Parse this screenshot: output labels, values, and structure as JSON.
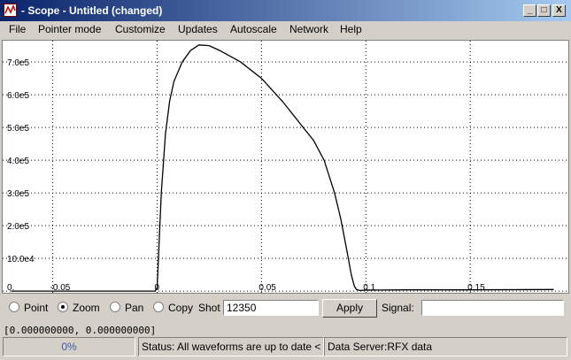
{
  "window": {
    "title": "- Scope - Untitled (changed)",
    "buttons": [
      "_",
      "□",
      "X"
    ]
  },
  "menu": [
    "File",
    "Pointer mode",
    "Customize",
    "Updates",
    "Autoscale",
    "Network",
    "Help"
  ],
  "plot": {
    "y_ticks": [
      "7.0e5",
      "6.0e5",
      "5.0e5",
      "4.0e5",
      "3.0e5",
      "2.0e5",
      "10.0e4",
      "0."
    ],
    "x_ticks": [
      "-0.05",
      "0",
      "0.05",
      "0.1",
      "0.15"
    ],
    "colors": {
      "background": "#ffffff",
      "grid": "#000000",
      "trace": "#000000"
    }
  },
  "chart_data": {
    "type": "line",
    "xlim": [
      -0.074,
      0.197
    ],
    "ylim": [
      -5000,
      765000
    ],
    "grid": true,
    "series": [
      {
        "x": [
          -0.07,
          -0.05,
          -0.02,
          -0.001,
          0.0,
          0.002,
          0.004,
          0.006,
          0.008,
          0.012,
          0.016,
          0.02,
          0.025,
          0.03,
          0.04,
          0.05,
          0.06,
          0.07,
          0.075,
          0.08,
          0.085,
          0.088,
          0.091,
          0.093,
          0.0945,
          0.0955,
          0.097,
          0.1,
          0.12,
          0.15,
          0.19
        ],
        "y": [
          0,
          0,
          0,
          0,
          10000,
          300000,
          480000,
          580000,
          640000,
          700000,
          735000,
          752000,
          750000,
          735000,
          700000,
          650000,
          580000,
          500000,
          460000,
          400000,
          300000,
          220000,
          120000,
          50000,
          15000,
          5000,
          2000,
          3000,
          4000,
          4000,
          5000
        ]
      }
    ]
  },
  "controls": {
    "modes": [
      "Point",
      "Zoom",
      "Pan",
      "Copy"
    ],
    "selected_mode": "Zoom",
    "shot_label": "Shot",
    "shot_value": "12350",
    "apply_label": "Apply",
    "signal_label": "Signal:",
    "signal_value": ""
  },
  "coords": "[0.000000000, 0.000000000]",
  "status": {
    "progress": "0%",
    "message": "Status: All waveforms are up to date <",
    "server": "Data Server:RFX data"
  }
}
